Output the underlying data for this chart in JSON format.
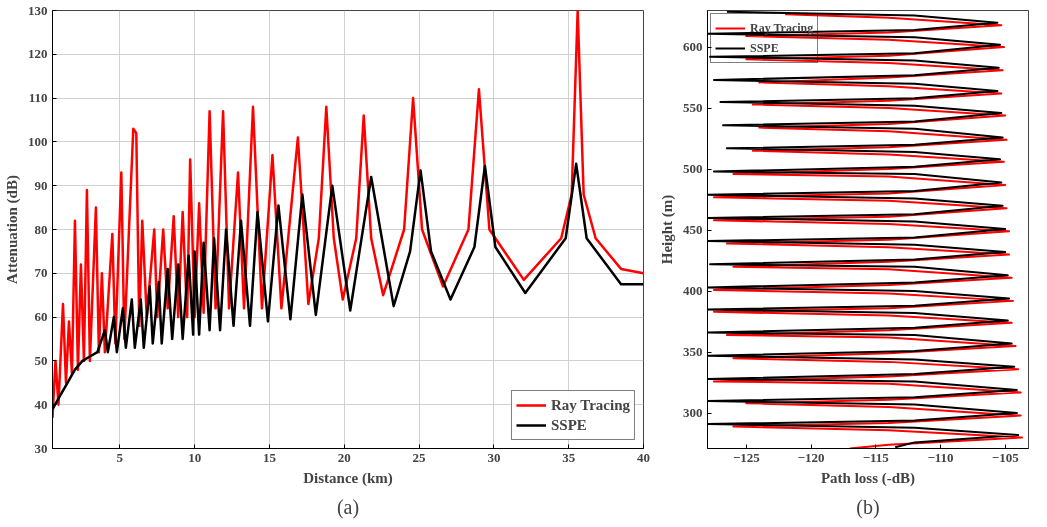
{
  "chart_data": [
    {
      "type": "line",
      "xlabel": "Distance (km)",
      "ylabel": "Attenuation (dB)",
      "annotations": [
        "(a)"
      ],
      "xlim": [
        0.5,
        40
      ],
      "ylim": [
        30,
        130
      ],
      "xticks": [
        5,
        10,
        15,
        20,
        25,
        30,
        35,
        40
      ],
      "yticks": [
        30,
        40,
        50,
        60,
        70,
        80,
        90,
        100,
        110,
        120,
        130
      ],
      "grid": true,
      "legend": "bottom right",
      "series": [
        {
          "name": "Ray Tracing",
          "color": "#ff0000",
          "x": [
            0.5,
            0.7,
            0.9,
            1.2,
            1.4,
            1.6,
            1.8,
            2.0,
            2.2,
            2.4,
            2.6,
            2.8,
            3.0,
            3.4,
            3.6,
            3.8,
            4.0,
            4.5,
            4.7,
            5.1,
            5.3,
            5.9,
            6.1,
            6.3,
            6.5,
            6.8,
            7.3,
            7.5,
            7.9,
            8.2,
            8.6,
            8.9,
            9.2,
            9.5,
            9.7,
            10.0,
            10.3,
            10.6,
            11.0,
            11.4,
            11.9,
            12.3,
            12.9,
            13.3,
            13.9,
            14.5,
            15.2,
            15.8,
            16.9,
            17.6,
            18.3,
            18.8,
            19.3,
            19.9,
            20.8,
            21.3,
            21.8,
            22.6,
            24.0,
            24.6,
            25.2,
            26.6,
            28.3,
            29.0,
            29.7,
            32.0,
            34.5,
            35.2,
            35.6,
            36.0,
            36.8,
            38.5,
            40
          ],
          "values": [
            37,
            50,
            40,
            63,
            45,
            59,
            47,
            82,
            48,
            72,
            50,
            89,
            50,
            85,
            52,
            70,
            52,
            79,
            54,
            93,
            55,
            103,
            102,
            58,
            82,
            60,
            80,
            60,
            80,
            62,
            83,
            60,
            84,
            60,
            96,
            60,
            86,
            61,
            107,
            62,
            107,
            62,
            93,
            62,
            108,
            62,
            97,
            62,
            101,
            63,
            78,
            108,
            78,
            64,
            78,
            106,
            78,
            65,
            80,
            110,
            80,
            67,
            80,
            112,
            80,
            68.5,
            78,
            88,
            130,
            88,
            78,
            71,
            70
          ]
        },
        {
          "name": "SSPE",
          "color": "#000000",
          "x": [
            0.5,
            1,
            1.5,
            2,
            2.5,
            3,
            3.5,
            4.0,
            4.2,
            4.6,
            4.8,
            5.2,
            5.4,
            5.8,
            6.0,
            6.4,
            6.6,
            7.0,
            7.2,
            7.6,
            7.8,
            8.2,
            8.5,
            8.9,
            9.2,
            9.6,
            9.9,
            10.0,
            10.3,
            10.6,
            11.0,
            11.3,
            11.7,
            12.1,
            12.6,
            13.1,
            13.7,
            14.2,
            14.9,
            15.6,
            16.4,
            17.2,
            18.1,
            19.2,
            20.4,
            21.8,
            23.3,
            24.4,
            25.1,
            25.8,
            27.1,
            28.7,
            29.4,
            30.1,
            32.1,
            34.8,
            35.5,
            36.2,
            38.5,
            40
          ],
          "values": [
            39,
            42,
            45,
            48,
            50,
            51,
            52,
            57,
            52,
            60,
            52,
            62,
            53,
            64,
            53,
            64,
            53,
            67,
            54,
            68,
            54,
            71,
            55,
            72,
            55,
            74,
            56,
            75,
            56,
            77,
            57,
            78,
            57,
            80,
            58,
            82,
            58,
            84,
            59,
            85.5,
            59.5,
            88,
            60.5,
            90,
            61.5,
            92,
            62.5,
            75,
            93.5,
            75,
            64,
            76,
            94.5,
            76,
            65.5,
            78,
            95,
            78,
            67.5,
            67.5
          ]
        }
      ]
    },
    {
      "type": "line",
      "xlabel": "Path loss (-dB)",
      "ylabel": "Height (m)",
      "annotations": [
        "(b)"
      ],
      "xlim": [
        -128,
        -103.2
      ],
      "ylim": [
        271,
        630
      ],
      "xticks": [
        -125,
        -120,
        -115,
        -110,
        -105
      ],
      "yticks": [
        300,
        350,
        400,
        450,
        500,
        550,
        600
      ],
      "grid": false,
      "legend": "top left",
      "series": [
        {
          "name": "Ray Tracing",
          "color": "#ff0000",
          "x": [
            -117,
            -114,
            -103.7,
            -114,
            -126,
            -114,
            -103.8,
            -114,
            -125,
            -114,
            -103.8,
            -114,
            -127.5,
            -114,
            -104,
            -114,
            -126,
            -114,
            -104.2,
            -114,
            -126.5,
            -114,
            -104.5,
            -114,
            -127.5,
            -114,
            -104.4,
            -114,
            -127.5,
            -114,
            -104.5,
            -114,
            -126,
            -114,
            -104.7,
            -114,
            -126.5,
            -114,
            -104.7,
            -114,
            -127.5,
            -114,
            -104.9,
            -114,
            -127.5,
            -114,
            -105,
            -114,
            -126,
            -114,
            -105.1,
            -114,
            -124.5,
            -114,
            -104.9,
            -114,
            -124,
            -114,
            -105,
            -114,
            -124.5,
            -114,
            -105.3,
            -114,
            -124,
            -114,
            -105.2,
            -114,
            -125,
            -114,
            -105.1,
            -114,
            -125,
            -114,
            -105.3,
            -114,
            -122
          ],
          "values": [
            271,
            274,
            280,
            286,
            289,
            292,
            298,
            305,
            308,
            311,
            317,
            324,
            326,
            330,
            336,
            342,
            345,
            349,
            355,
            362,
            364,
            368,
            374,
            380,
            383,
            386,
            392,
            398,
            401,
            405,
            411,
            418,
            420,
            424,
            430,
            436,
            439,
            442,
            449,
            455,
            458,
            461,
            468,
            474,
            477,
            480,
            487,
            494,
            496,
            500,
            506,
            512,
            515,
            518,
            524,
            531,
            534,
            537,
            544,
            550,
            553,
            556,
            562,
            568,
            571,
            575,
            581,
            587,
            590,
            593,
            600,
            606,
            609,
            612,
            618,
            624,
            627
          ]
        },
        {
          "name": "SSPE",
          "color": "#000000",
          "x": [
            -113.5,
            -112,
            -104,
            -112,
            -128,
            -112,
            -104.1,
            -112,
            -128,
            -112,
            -104.1,
            -112,
            -128,
            -112,
            -104.3,
            -112,
            -128,
            -112,
            -104.5,
            -112,
            -128,
            -112,
            -104.8,
            -112,
            -128,
            -112,
            -104.7,
            -112,
            -128,
            -112,
            -104.8,
            -112,
            -127.8,
            -112,
            -105,
            -112,
            -128,
            -112,
            -105,
            -112,
            -128,
            -112,
            -105.2,
            -112,
            -128,
            -112,
            -105.3,
            -112,
            -127.5,
            -112,
            -105.4,
            -112,
            -126.5,
            -112,
            -105.2,
            -112,
            -126.8,
            -112,
            -105.3,
            -112,
            -127,
            -112,
            -105.6,
            -112,
            -127.5,
            -112,
            -105.5,
            -112,
            -127.8,
            -112,
            -105.4,
            -112,
            -128,
            -112,
            -105.6,
            -112,
            -126.5
          ],
          "values": [
            272,
            276,
            282,
            288,
            291,
            294,
            300,
            307,
            310,
            313,
            319,
            326,
            328,
            332,
            338,
            344,
            347,
            351,
            357,
            364,
            366,
            370,
            376,
            382,
            385,
            388,
            394,
            400,
            403,
            407,
            413,
            420,
            422,
            426,
            432,
            438,
            441,
            444,
            451,
            457,
            460,
            463,
            470,
            476,
            479,
            482,
            489,
            496,
            498,
            502,
            508,
            514,
            517,
            520,
            526,
            533,
            536,
            539,
            546,
            552,
            555,
            558,
            564,
            570,
            573,
            577,
            583,
            589,
            592,
            595,
            602,
            608,
            611,
            614,
            620,
            626,
            629
          ]
        }
      ]
    }
  ]
}
